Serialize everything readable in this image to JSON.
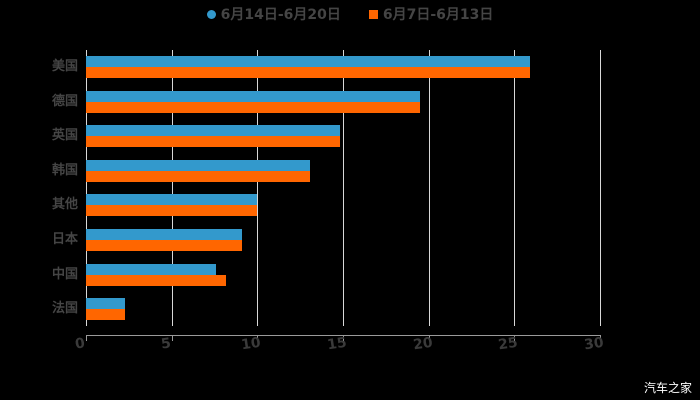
{
  "legend": [
    {
      "label": "6月14日-6月20日",
      "color": "#3399cc",
      "shape": "circle"
    },
    {
      "label": "6月7日-6月13日",
      "color": "#ff6600",
      "shape": "square"
    }
  ],
  "watermark": "汽车之家",
  "chart_data": {
    "type": "bar",
    "orientation": "horizontal",
    "title": "",
    "xlabel": "",
    "ylabel": "",
    "categories": [
      "美国",
      "德国",
      "英国",
      "韩国",
      "其他",
      "日本",
      "中国",
      "法国"
    ],
    "series": [
      {
        "name": "6月14日-6月20日",
        "color": "#3399cc",
        "values": [
          25.9,
          19.5,
          14.8,
          13.1,
          10.0,
          9.1,
          7.6,
          2.3
        ]
      },
      {
        "name": "6月7日-6月13日",
        "color": "#ff6600",
        "values": [
          25.9,
          19.5,
          14.8,
          13.1,
          10.0,
          9.1,
          8.2,
          2.3
        ]
      }
    ],
    "xlim": [
      0,
      30
    ],
    "xticks": [
      "0",
      "5",
      "10",
      "15",
      "20",
      "25",
      "30"
    ],
    "grid": true,
    "legend_position": "top"
  }
}
